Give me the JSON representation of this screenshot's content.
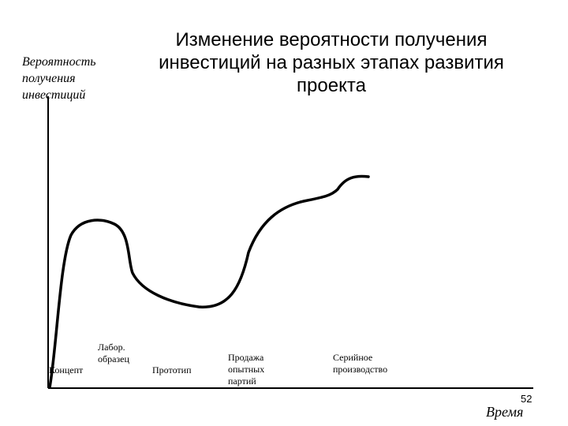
{
  "title_lines": [
    "Изменение вероятности получения",
    "инвестиций на разных этапах развития",
    "проекта"
  ],
  "y_axis_label_lines": [
    "Вероятность",
    "получения",
    "инвестиций"
  ],
  "x_axis_label": "Время",
  "page_number": "52",
  "stages": {
    "concept": [
      "Концепт"
    ],
    "lab_sample": [
      "Лабор.",
      "образец"
    ],
    "prototype": [
      "Прототип"
    ],
    "pilot_sales": [
      "Продажа",
      "опытных",
      "партий"
    ],
    "serial_production": [
      "Серийное",
      "производство"
    ]
  }
}
